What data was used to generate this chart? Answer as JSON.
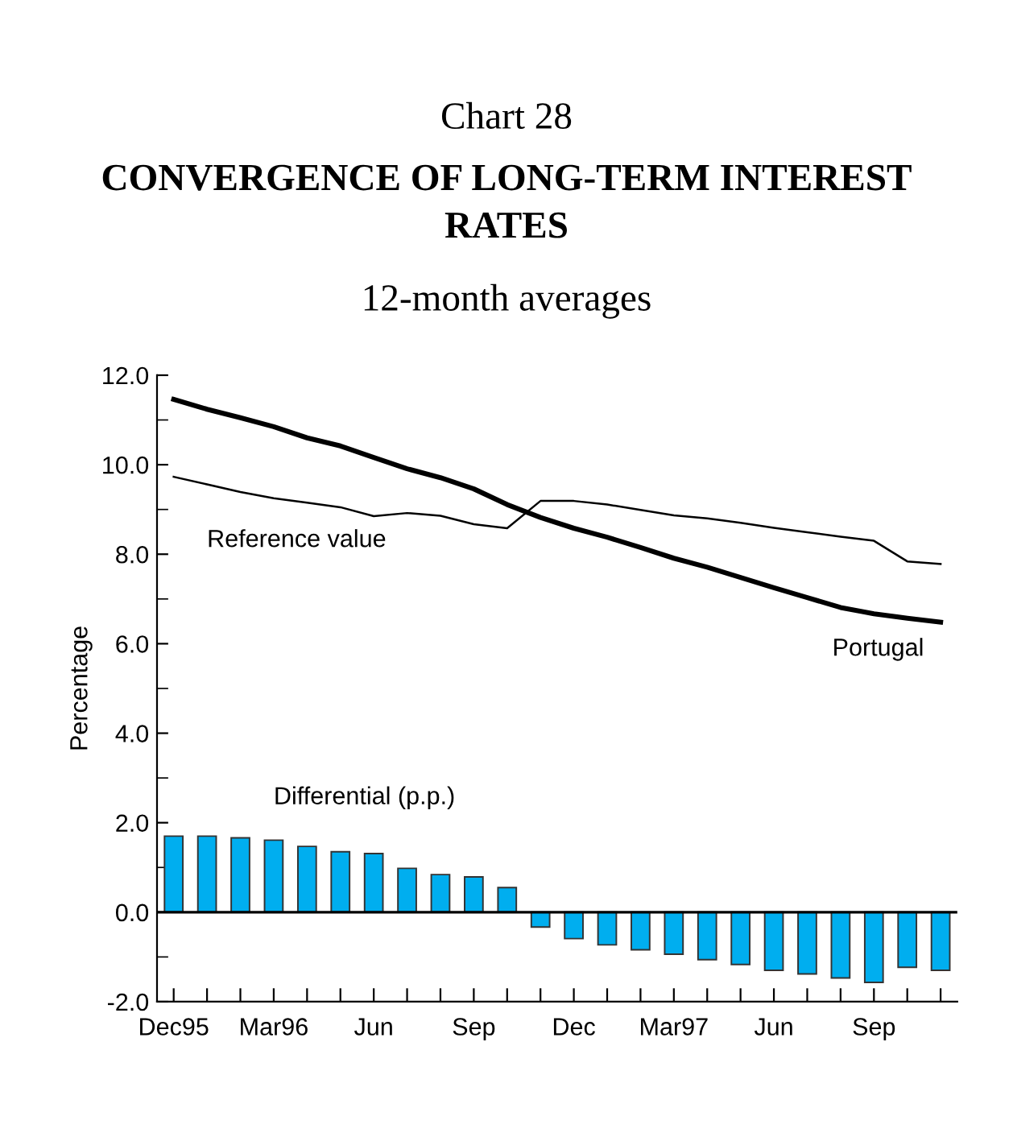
{
  "chart_data": {
    "type": "line",
    "title": "CONVERGENCE OF LONG-TERM INTEREST RATES",
    "subtitle": "12-month averages",
    "ylabel": "Percentage",
    "annotations": [
      "Chart 28"
    ],
    "categories": [
      "Dec95",
      null,
      null,
      "Mar96",
      null,
      null,
      "Jun",
      null,
      null,
      "Sep",
      null,
      null,
      "Dec",
      null,
      null,
      "Mar97",
      null,
      null,
      "Jun",
      null,
      null,
      "Sep",
      null,
      null
    ],
    "series": [
      {
        "name": "Portugal",
        "color": "#000000",
        "values": [
          11.46,
          11.24,
          11.05,
          10.85,
          10.6,
          10.42,
          10.16,
          9.91,
          9.71,
          9.46,
          9.11,
          8.82,
          8.58,
          8.38,
          8.15,
          7.91,
          7.71,
          7.48,
          7.25,
          7.03,
          6.81,
          6.67,
          6.57,
          6.48
        ]
      },
      {
        "name": "Reference value",
        "color": "#000000",
        "values": [
          9.73,
          9.56,
          9.39,
          9.25,
          9.15,
          9.05,
          8.85,
          8.92,
          8.86,
          8.67,
          8.58,
          9.19,
          9.19,
          9.11,
          8.99,
          8.87,
          8.8,
          8.7,
          8.59,
          8.49,
          8.39,
          8.3,
          7.84,
          7.78
        ]
      },
      {
        "name": "Differential (p.p.)",
        "type": "bar",
        "color": "#00aeef",
        "values": [
          1.7,
          1.7,
          1.66,
          1.61,
          1.47,
          1.35,
          1.31,
          0.98,
          0.84,
          0.79,
          0.55,
          -0.33,
          -0.59,
          -0.73,
          -0.84,
          -0.94,
          -1.06,
          -1.17,
          -1.3,
          -1.38,
          -1.47,
          -1.57,
          -1.23,
          -1.3
        ]
      }
    ],
    "ylim": [
      -2,
      12
    ],
    "yticks": [
      {
        "value": -2,
        "label": "-2.0"
      },
      {
        "value": 0,
        "label": "0.0"
      },
      {
        "value": 2,
        "label": "2.0"
      },
      {
        "value": 4,
        "label": "4.0"
      },
      {
        "value": 6,
        "label": "6.0"
      },
      {
        "value": 8,
        "label": "8.0"
      },
      {
        "value": 10,
        "label": "10.0"
      },
      {
        "value": 12,
        "label": "12.0"
      }
    ],
    "ref_lines": [
      {
        "axis": "y",
        "value": 0,
        "color": "#000000"
      }
    ],
    "grid": false,
    "legend": false
  }
}
